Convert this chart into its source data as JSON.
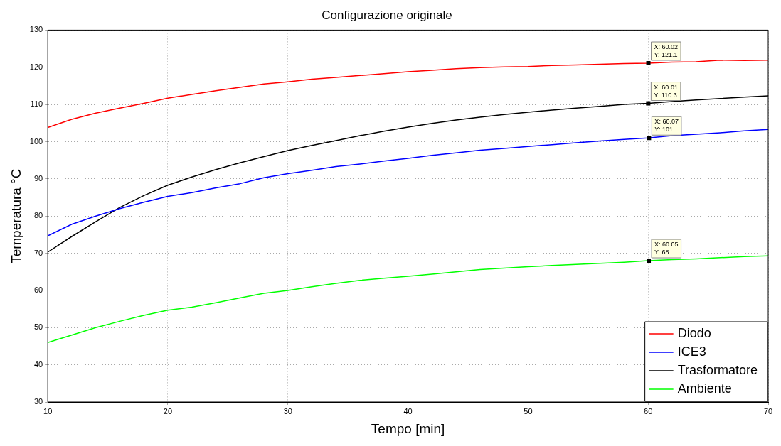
{
  "chart_data": {
    "type": "line",
    "title": "Configurazione originale",
    "xlabel": "Tempo [min]",
    "ylabel": "Temperatura °C",
    "x": [
      10,
      12,
      14,
      16,
      18,
      20,
      22,
      24,
      26,
      28,
      30,
      32,
      34,
      36,
      38,
      40,
      42,
      44,
      46,
      48,
      50,
      52,
      54,
      56,
      58,
      60,
      62,
      64,
      66,
      68,
      70
    ],
    "series": [
      {
        "name": "Diodo",
        "color": "#ff0000",
        "values": [
          103.8,
          106,
          107.7,
          109,
          110.3,
          111.7,
          112.7,
          113.7,
          114.6,
          115.5,
          116.1,
          116.8,
          117.3,
          117.8,
          118.3,
          118.8,
          119.2,
          119.6,
          119.9,
          120.1,
          120.2,
          120.5,
          120.6,
          120.8,
          121,
          121.1,
          121.4,
          121.5,
          121.9,
          121.8,
          121.9
        ]
      },
      {
        "name": "ICE3",
        "color": "#0000ff",
        "values": [
          74.7,
          77.8,
          80,
          82,
          83.7,
          85.3,
          86.3,
          87.6,
          88.7,
          90.3,
          91.4,
          92.3,
          93.3,
          94,
          94.8,
          95.5,
          96.3,
          97,
          97.7,
          98.2,
          98.7,
          99.2,
          99.7,
          100.2,
          100.6,
          101,
          101.6,
          102,
          102.4,
          102.9,
          103.3
        ]
      },
      {
        "name": "Trasformatore",
        "color": "#000000",
        "values": [
          70.3,
          74.5,
          78.5,
          82.3,
          85.5,
          88.3,
          90.5,
          92.5,
          94.3,
          96,
          97.6,
          99,
          100.3,
          101.6,
          102.8,
          103.9,
          104.9,
          105.8,
          106.6,
          107.3,
          107.9,
          108.5,
          109,
          109.5,
          110,
          110.3,
          110.8,
          111.2,
          111.6,
          112,
          112.3
        ]
      },
      {
        "name": "Ambiente",
        "color": "#00ff00",
        "values": [
          46,
          48,
          50,
          51.7,
          53.3,
          54.7,
          55.5,
          56.7,
          58,
          59.2,
          60,
          61,
          61.9,
          62.7,
          63.3,
          63.8,
          64.4,
          65,
          65.6,
          66,
          66.4,
          66.7,
          67,
          67.3,
          67.6,
          68,
          68.3,
          68.5,
          68.8,
          69.1,
          69.3
        ]
      }
    ],
    "xlim": [
      10,
      70
    ],
    "xticks": [
      10,
      20,
      30,
      40,
      50,
      60,
      70
    ],
    "ylim": [
      30,
      130
    ],
    "yticks": [
      30,
      40,
      50,
      60,
      70,
      80,
      90,
      100,
      110,
      120,
      130
    ],
    "grid": true,
    "legend": "bottom right",
    "line_style": "solid",
    "annotations": [
      {
        "text": "X: 60.02\nY: 121.1",
        "x": 60.02,
        "y": 121.1
      },
      {
        "text": "X: 60.01\nY: 110.3",
        "x": 60.01,
        "y": 110.3
      },
      {
        "text": "X: 60.07\nY: 101",
        "x": 60.07,
        "y": 101
      },
      {
        "text": "X: 60.05\nY: 68",
        "x": 60.05,
        "y": 68
      }
    ]
  }
}
